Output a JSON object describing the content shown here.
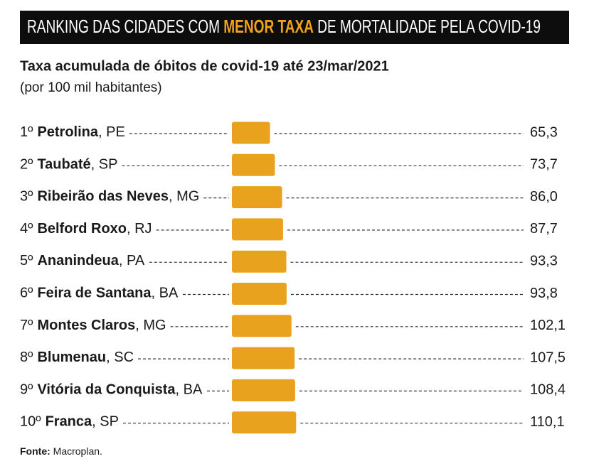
{
  "chart_data": {
    "type": "bar",
    "title": [
      "RANKING DAS CIDADES COM",
      "MENOR TAXA",
      "DE MORTALIDADE PELA COVID-19"
    ],
    "subtitle": "Taxa acumulada de óbitos de covid-19 até 23/mar/2021",
    "note": "(por 100 mil habitantes)",
    "ranks": [
      "1º",
      "2º",
      "3º",
      "4º",
      "5º",
      "6º",
      "7º",
      "8º",
      "9º",
      "10º"
    ],
    "categories": [
      "Petrolina",
      "Taubaté",
      "Ribeirão das Neves",
      "Belford Roxo",
      "Ananindeua",
      "Feira de Santana",
      "Montes Claros",
      "Blumenau",
      "Vitória da Conquista",
      "Franca"
    ],
    "states": [
      ", PE",
      ", SP",
      ", MG",
      ", RJ",
      ", PA",
      ", BA",
      ", MG",
      ", SC",
      ", BA",
      ", SP"
    ],
    "values": [
      65.3,
      73.7,
      86.0,
      87.7,
      93.3,
      93.8,
      102.1,
      107.5,
      108.4,
      110.1
    ],
    "value_labels": [
      "65,3",
      "73,7",
      "86,0",
      "87,7",
      "93,3",
      "93,8",
      "102,1",
      "107,5",
      "108,4",
      "110,1"
    ],
    "color": "#e8a21d",
    "source_label": "Fonte:",
    "source": "Macroplan."
  }
}
